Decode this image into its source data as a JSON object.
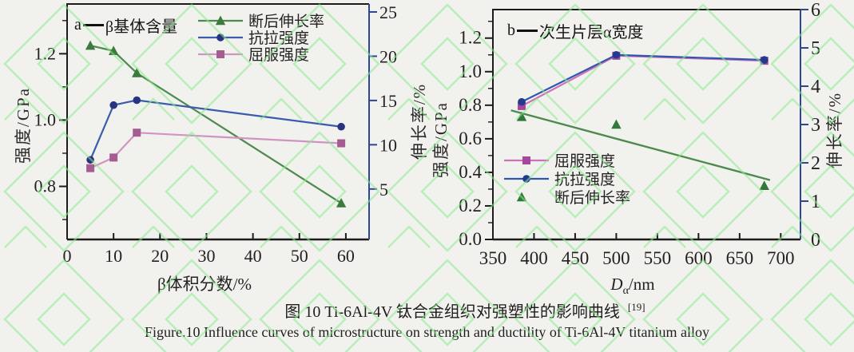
{
  "figure": {
    "caption_zh": "图 10 Ti-6Al-4V 钛合金组织对强塑性的影响曲线",
    "caption_ref": "[19]",
    "caption_en": "Figure.10 Influence curves of microstructure on strength and ductility of Ti-6Al-4V titanium alloy",
    "watermark_color": "#8be88b"
  },
  "chart_data": [
    {
      "id": "a",
      "type": "line",
      "panel_letter": "a",
      "title": "β基体含量",
      "xlabel": "β体积分数/%",
      "ylabel_left": "强度/GPa",
      "ylabel_right": "伸长率/%",
      "xlim": [
        0,
        65
      ],
      "ylim_left": [
        0.64,
        1.35
      ],
      "ylim_right": [
        -0.7,
        25.9
      ],
      "x_ticks": {
        "values": [
          0,
          10,
          20,
          30,
          40,
          50,
          60
        ],
        "labels": [
          "0",
          "10",
          "20",
          "30",
          "40",
          "50",
          "60"
        ]
      },
      "y_left_ticks": {
        "values": [
          0.8,
          1.0,
          1.2
        ],
        "labels": [
          "0.8",
          "1.0",
          "1.2"
        ],
        "minor": [
          0.7,
          0.9,
          1.1,
          1.3
        ]
      },
      "y_right_ticks": {
        "values": [
          5,
          10,
          15,
          20,
          25
        ],
        "labels": [
          "5",
          "10",
          "15",
          "20",
          "25"
        ]
      },
      "axis_colors": {
        "frame": "#1c1c1c",
        "right_axis": "#2e4496"
      },
      "legend_position": "top-inside",
      "series": [
        {
          "key": "elongation",
          "name": "断后伸长率",
          "axis": "right",
          "marker": "triangle",
          "line": true,
          "color": "#4d8a4d",
          "marker_color": "#3c7b3c",
          "x": [
            5,
            10,
            15,
            59
          ],
          "values": [
            21.2,
            20.6,
            18.1,
            3.4
          ]
        },
        {
          "key": "tensile",
          "name": "抗拉强度",
          "axis": "left",
          "marker": "circle",
          "line": true,
          "color": "#3b5bab",
          "marker_color": "#283480",
          "x": [
            5,
            10,
            15,
            59
          ],
          "values": [
            0.88,
            1.045,
            1.06,
            0.98
          ]
        },
        {
          "key": "yield",
          "name": "屈服强度",
          "axis": "left",
          "marker": "square",
          "line": true,
          "color": "#d193c2",
          "marker_color": "#a55c92",
          "x": [
            5,
            10,
            15,
            59
          ],
          "values": [
            0.855,
            0.887,
            0.962,
            0.93
          ]
        }
      ]
    },
    {
      "id": "b",
      "type": "line",
      "panel_letter": "b",
      "title": "次生片层α宽度",
      "xlabel_main": "D",
      "xlabel_sub": "α",
      "xlabel_unit": "/nm",
      "ylabel_left": "强度/GPa",
      "ylabel_right": "伸长率/%",
      "xlim": [
        350,
        724
      ],
      "ylim_left": [
        0,
        1.37
      ],
      "ylim_right": [
        0,
        6
      ],
      "x_ticks": {
        "values": [
          350,
          400,
          450,
          500,
          550,
          600,
          650,
          700
        ],
        "labels": [
          "350",
          "400",
          "450",
          "500",
          "550",
          "600",
          "650",
          "700"
        ]
      },
      "y_left_ticks": {
        "values": [
          0,
          0.2,
          0.4,
          0.6,
          0.8,
          1.0,
          1.2
        ],
        "labels": [
          "0.0",
          "0.2",
          "0.4",
          "0.6",
          "0.8",
          "1.0",
          "1.2"
        ],
        "minor": [
          0.1,
          0.3,
          0.5,
          0.7,
          0.9,
          1.1,
          1.3
        ]
      },
      "y_right_ticks": {
        "values": [
          0,
          1,
          2,
          3,
          4,
          5,
          6
        ],
        "labels": [
          "0",
          "1",
          "2",
          "3",
          "4",
          "5",
          "6"
        ]
      },
      "axis_colors": {
        "frame": "#1c1c1c",
        "right_axis": "#2e4496"
      },
      "legend_position": "bottom-left-inside",
      "series": [
        {
          "key": "yield",
          "name": "屈服强度",
          "axis": "left",
          "marker": "square",
          "line": true,
          "color": "#c973b8",
          "marker_color": "#a5479a",
          "x": [
            385,
            500,
            680
          ],
          "values": [
            0.795,
            1.095,
            1.065
          ]
        },
        {
          "key": "tensile",
          "name": "抗拉强度",
          "axis": "left",
          "marker": "circle",
          "line": true,
          "color": "#2f55b0",
          "marker_color": "#233b8f",
          "x": [
            385,
            500,
            680
          ],
          "values": [
            0.82,
            1.1,
            1.07
          ]
        },
        {
          "key": "elongation",
          "name": "断后伸长率",
          "axis": "right",
          "marker": "triangle",
          "line": false,
          "color": "#4d8a4d",
          "marker_color": "#2f7a3a",
          "x": [
            385,
            500,
            680
          ],
          "values": [
            3.2,
            3.0,
            1.4
          ],
          "trend": {
            "x": [
              372,
              687
            ],
            "values": [
              3.37,
              1.55
            ]
          }
        }
      ]
    }
  ]
}
